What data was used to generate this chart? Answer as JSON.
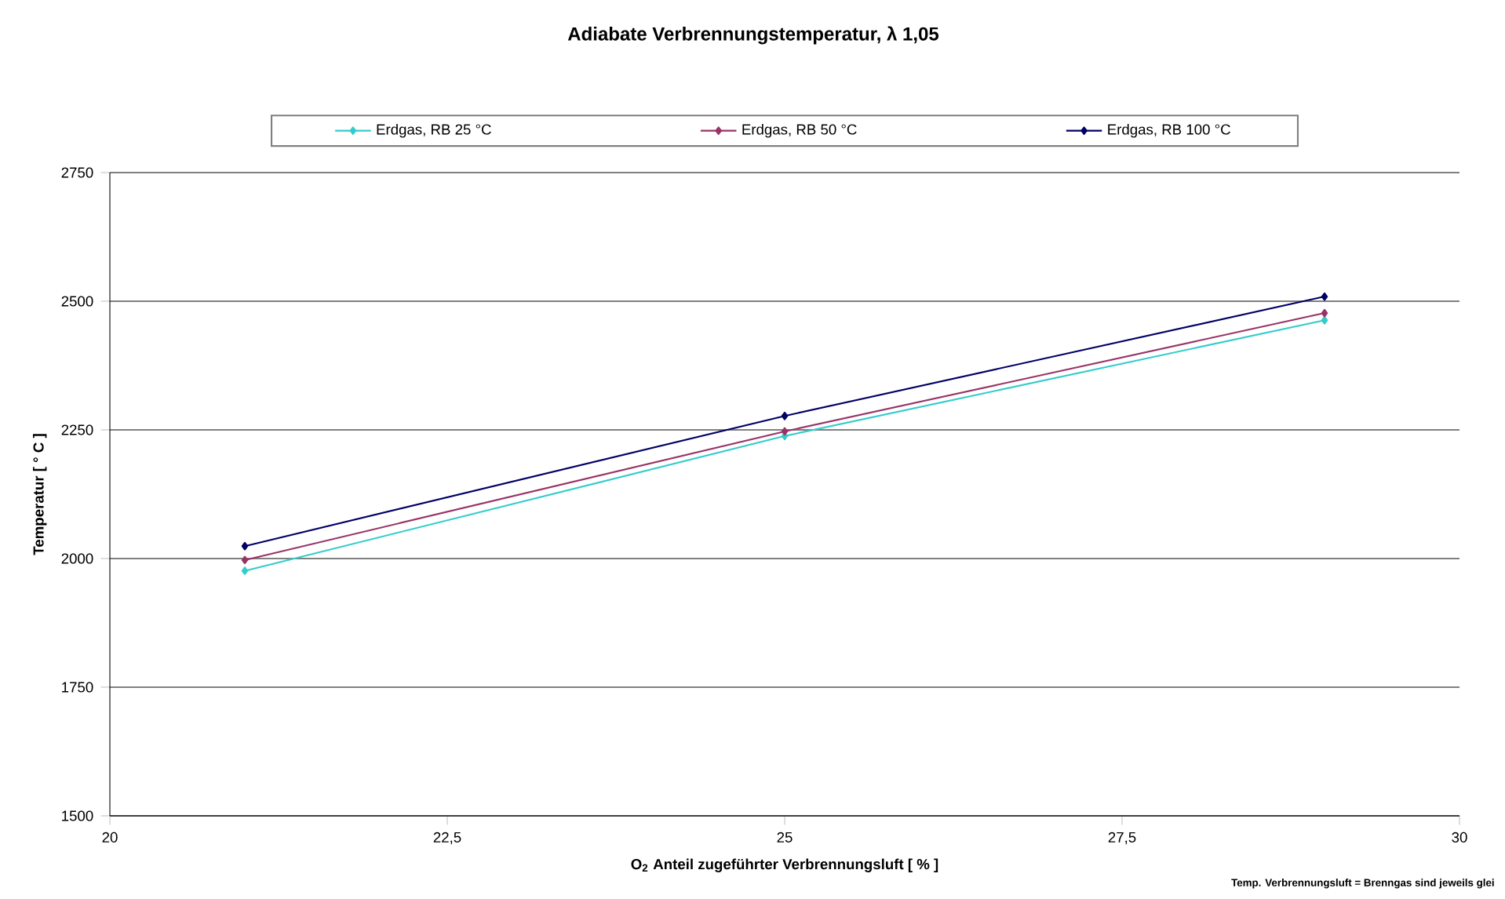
{
  "chart_data": {
    "type": "line",
    "title": "Adiabate Verbrennungstemperatur, λ     1,05",
    "xlabel": "O$_{2}$ Anteil zugeführter Verbrennungsluft [ % ]",
    "ylabel": "Temperatur [ ° C ]",
    "x": [
      21,
      25,
      29
    ],
    "series": [
      {
        "name": "Erdgas, RB 25 °C",
        "color": "#33cccc",
        "values": [
          1976,
          2238,
          2463
        ]
      },
      {
        "name": "Erdgas, RB 50 °C",
        "color": "#993366",
        "values": [
          1997,
          2247,
          2477
        ]
      },
      {
        "name": "Erdgas, RB 100 °C",
        "color": "#000066",
        "values": [
          2024,
          2277,
          2509
        ]
      }
    ],
    "xlim": [
      20,
      30
    ],
    "xticks": [
      20,
      {
        "value": 22.5,
        "label": "22,5"
      },
      25,
      {
        "value": 27.5,
        "label": "27,5"
      },
      30
    ],
    "ylim": [
      1500,
      2750
    ],
    "yticks": [
      1500,
      1750,
      2000,
      2250,
      2500,
      2750
    ],
    "grid": "y",
    "legend": "top",
    "marker": "diamond",
    "line_style": "solid",
    "annotations": [
      "Temp. Verbrennungsluft = Brenngas sind jeweils glei"
    ]
  }
}
